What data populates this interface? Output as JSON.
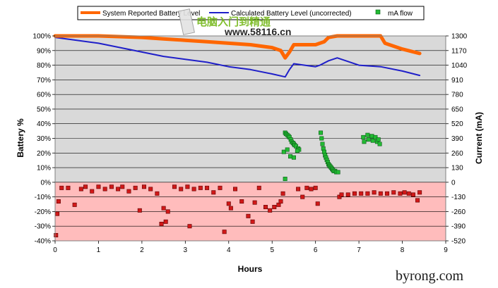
{
  "chart_data": {
    "type": "line",
    "xlabel": "Hours",
    "ylabel_left": "Battery %",
    "ylabel_right": "Current (mA)",
    "xlim": [
      0,
      9
    ],
    "ylim_left": [
      -40,
      100
    ],
    "ylim_right": [
      -520,
      1300
    ],
    "x_ticks": [
      "0",
      "1",
      "2",
      "3",
      "4",
      "5",
      "6",
      "7",
      "8",
      "9"
    ],
    "y_ticks_left": [
      "100%",
      "90%",
      "80%",
      "70%",
      "60%",
      "50%",
      "40%",
      "30%",
      "20%",
      "10%",
      "0%",
      "-10%",
      "-20%",
      "-30%",
      "-40%"
    ],
    "y_ticks_right": [
      "1300",
      "1170",
      "1040",
      "910",
      "780",
      "650",
      "520",
      "390",
      "260",
      "130",
      "0",
      "-130",
      "-260",
      "-390",
      "-520"
    ],
    "colors": {
      "reported": "#ff6600",
      "calculated": "#1f1fc9",
      "mA_positive": "#22bb33",
      "mA_negative": "#d11818",
      "background_positive": "#d9d9d9",
      "background_negative": "#ffbcbc"
    },
    "legend_position": "top",
    "series": [
      {
        "name": "System Reported Battery Level",
        "axis": "left",
        "x": [
          0,
          1.0,
          2.0,
          2.5,
          3.0,
          3.5,
          4.0,
          4.5,
          5.0,
          5.2,
          5.3,
          5.4,
          5.5,
          5.6,
          6.0,
          6.2,
          6.3,
          6.5,
          7.0,
          7.5,
          7.6,
          8.0,
          8.4
        ],
        "values": [
          100,
          100,
          99,
          98,
          97,
          96,
          95,
          94,
          92,
          90,
          85,
          89,
          94,
          94,
          94,
          96,
          99,
          100,
          100,
          100,
          95,
          91,
          88
        ]
      },
      {
        "name": "Calculated Battery Level (uncorrected)",
        "axis": "left",
        "x": [
          0,
          0.5,
          1.0,
          1.5,
          2.0,
          2.5,
          3.0,
          3.5,
          4.0,
          4.5,
          5.0,
          5.3,
          5.4,
          5.5,
          6.0,
          6.1,
          6.3,
          6.5,
          7.0,
          7.5,
          8.0,
          8.4
        ],
        "values": [
          99,
          97,
          95,
          92,
          89,
          86,
          84,
          82,
          79,
          77,
          74,
          72,
          77,
          81,
          79,
          80,
          83,
          85,
          80,
          79,
          76,
          73
        ]
      },
      {
        "name": "mA flow",
        "axis": "right",
        "type": "scatter",
        "x": [
          0.02,
          0.05,
          0.08,
          0.15,
          0.3,
          0.45,
          0.6,
          0.7,
          0.85,
          1.0,
          1.15,
          1.3,
          1.45,
          1.55,
          1.7,
          1.85,
          1.95,
          2.05,
          2.2,
          2.35,
          2.45,
          2.5,
          2.55,
          2.6,
          2.75,
          2.9,
          3.05,
          3.1,
          3.2,
          3.35,
          3.5,
          3.65,
          3.8,
          3.9,
          4.0,
          4.05,
          4.15,
          4.3,
          4.45,
          4.55,
          4.6,
          4.7,
          4.85,
          4.95,
          5.05,
          5.15,
          5.2,
          5.25,
          5.3,
          5.6,
          5.7,
          5.8,
          5.9,
          6.0,
          6.05,
          6.55,
          6.6,
          6.75,
          6.9,
          7.05,
          7.2,
          7.35,
          7.5,
          7.65,
          7.8,
          7.95,
          8.05,
          8.15,
          8.25,
          8.35,
          8.4,
          5.3,
          5.32,
          5.35,
          5.38,
          5.4,
          5.43,
          5.45,
          5.48,
          5.5,
          5.52,
          5.55,
          5.6,
          5.62,
          5.27,
          5.35,
          5.42,
          5.5,
          5.58,
          6.12,
          6.14,
          6.16,
          6.18,
          6.2,
          6.22,
          6.24,
          6.26,
          6.28,
          6.3,
          6.32,
          6.34,
          6.36,
          6.38,
          6.4,
          6.42,
          6.45,
          6.48,
          6.52,
          7.1,
          7.12,
          7.2,
          7.22,
          7.3,
          7.32,
          7.38,
          7.42,
          7.45,
          7.48
        ],
        "values": [
          -470,
          -280,
          -170,
          -50,
          -50,
          -200,
          -60,
          -40,
          -80,
          -40,
          -60,
          -40,
          -60,
          -40,
          -80,
          -50,
          -250,
          -40,
          -60,
          -100,
          -370,
          -230,
          -350,
          -260,
          -40,
          -60,
          -40,
          -390,
          -60,
          -50,
          -50,
          -90,
          -50,
          -440,
          -190,
          -230,
          -60,
          -170,
          -300,
          -350,
          -180,
          -50,
          -220,
          -250,
          -220,
          -200,
          -170,
          -100,
          30,
          -60,
          -130,
          -50,
          -60,
          -50,
          -190,
          -130,
          -110,
          -110,
          -100,
          -100,
          -100,
          -90,
          -100,
          -100,
          -90,
          -100,
          -90,
          -100,
          -110,
          -160,
          -90,
          440,
          430,
          420,
          410,
          400,
          380,
          360,
          350,
          340,
          330,
          320,
          300,
          290,
          270,
          290,
          230,
          220,
          280,
          440,
          390,
          340,
          300,
          270,
          240,
          220,
          200,
          180,
          160,
          150,
          140,
          130,
          120,
          110,
          100,
          100,
          90,
          90,
          400,
          360,
          420,
          380,
          410,
          370,
          400,
          360,
          380,
          340
        ]
      }
    ]
  },
  "watermarks": {
    "site_cn": "电脑入门到精通",
    "site_url": "www.58116.cn",
    "corner": "byrong.com"
  }
}
